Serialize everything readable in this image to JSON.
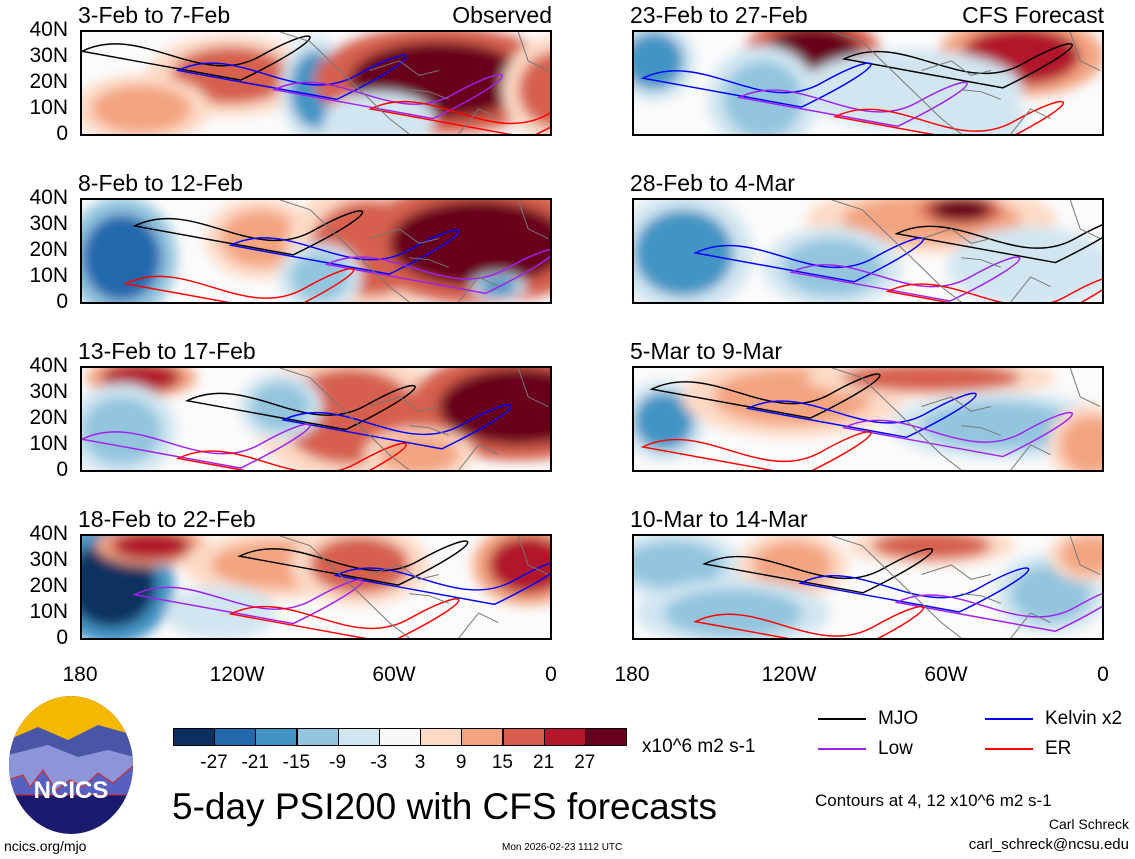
{
  "panels": [
    {
      "title": "3-Feb to 7-Feb",
      "tag": "Observed"
    },
    {
      "title": "8-Feb to 12-Feb",
      "tag": ""
    },
    {
      "title": "13-Feb to 17-Feb",
      "tag": ""
    },
    {
      "title": "18-Feb to 22-Feb",
      "tag": ""
    },
    {
      "title": "23-Feb to 27-Feb",
      "tag": "CFS Forecast"
    },
    {
      "title": "28-Feb to 4-Mar",
      "tag": ""
    },
    {
      "title": "5-Mar to 9-Mar",
      "tag": ""
    },
    {
      "title": "10-Mar to 14-Mar",
      "tag": ""
    }
  ],
  "chart_data": {
    "type": "heatmap",
    "title": "5-day PSI200 with CFS forecasts",
    "yticks": [
      "40N",
      "30N",
      "20N",
      "10N",
      "0"
    ],
    "xticks": [
      "180",
      "120W",
      "60W",
      "0"
    ],
    "colorbar": {
      "levels": [
        "-27",
        "-21",
        "-15",
        "-9",
        "-3",
        "3",
        "9",
        "15",
        "21",
        "27"
      ],
      "colors": [
        "#0b3060",
        "#2268ad",
        "#4394c4",
        "#93c5de",
        "#d2e6f1",
        "#f8f8f8",
        "#fddac6",
        "#f3a481",
        "#d6604d",
        "#b1182b",
        "#67001f"
      ],
      "units": "x10^6 m2 s-1"
    },
    "legend": [
      {
        "label": "MJO",
        "color": "#000000"
      },
      {
        "label": "Kelvin x2",
        "color": "#0000ff"
      },
      {
        "label": "Low",
        "color": "#a020f0"
      },
      {
        "label": "ER",
        "color": "#ff0000"
      }
    ],
    "contours_note": "Contours at 4, 12 x10^6 m2 s-1"
  },
  "footer": {
    "url": "ncics.org/mjo",
    "timestamp": "Mon 2026-02-23 1112 UTC",
    "author": "Carl Schreck",
    "email": "carl_schreck@ncsu.edu",
    "logo": "NCICS"
  }
}
